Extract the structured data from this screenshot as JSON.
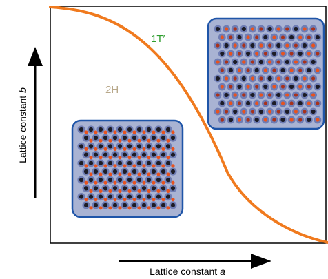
{
  "diagram": {
    "x_axis_label": "Lattice constant ",
    "x_axis_symbol": "a",
    "y_axis_label": "Lattice constant ",
    "y_axis_symbol": "b",
    "phases": [
      {
        "id": "1t-prime",
        "label": "1T′",
        "color": "#2e9e2e"
      },
      {
        "id": "2h",
        "label": "2H",
        "color": "#b8a88a"
      }
    ],
    "colors": {
      "boundary": "#f07a1e",
      "inset_fill": "#a9b3d3",
      "inset_border": "#1f55a8",
      "atom_dark": "#1c1c26",
      "atom_orange": "#e8531f",
      "atom_red": "#a8321c",
      "atom_halo": "#6f7db4"
    }
  }
}
